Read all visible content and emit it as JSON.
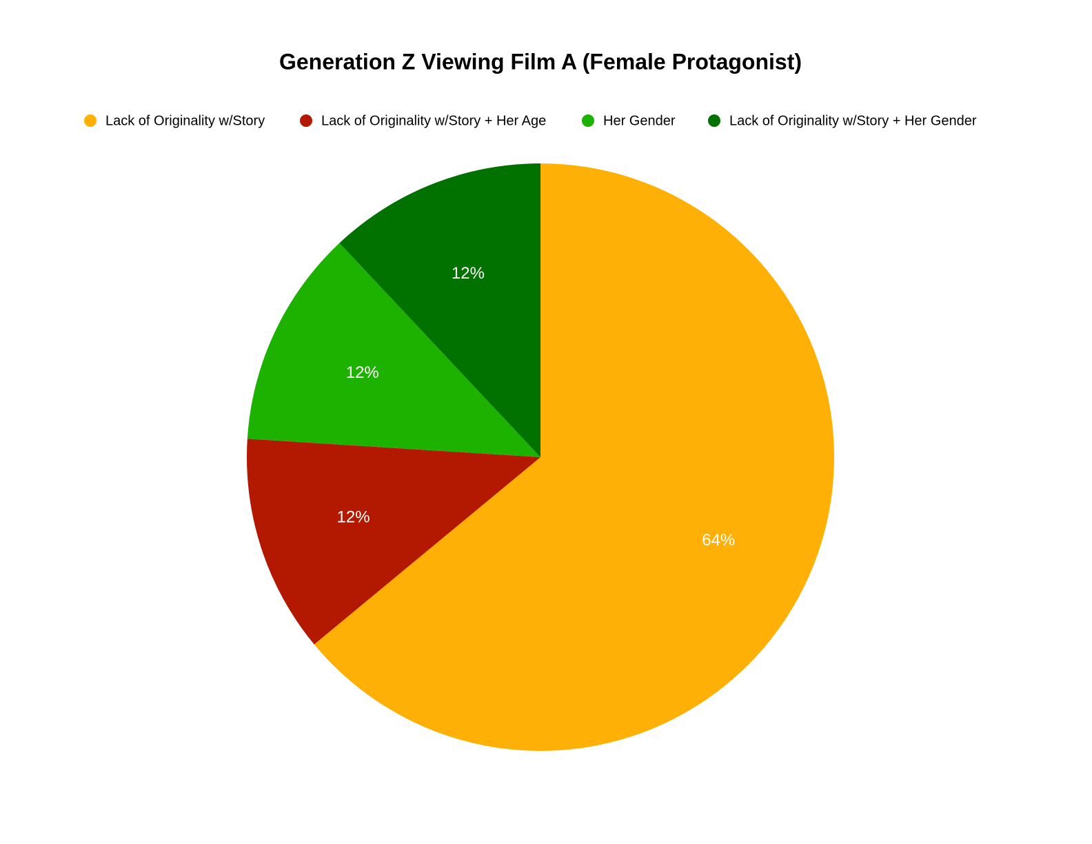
{
  "chart_data": {
    "type": "pie",
    "title": "Generation Z Viewing Film A (Female Protagonist)",
    "categories": [
      "Lack of Originality w/Story",
      "Lack of Originality w/Story + Her Age",
      "Her Gender",
      "Lack of Originality w/Story + Her Gender"
    ],
    "values": [
      64,
      12,
      12,
      12
    ],
    "value_labels": [
      "64%",
      "12%",
      "12%",
      "12%"
    ],
    "colors": [
      "#ffb006",
      "#b31800",
      "#1db100",
      "#017100"
    ],
    "legend": "top"
  }
}
